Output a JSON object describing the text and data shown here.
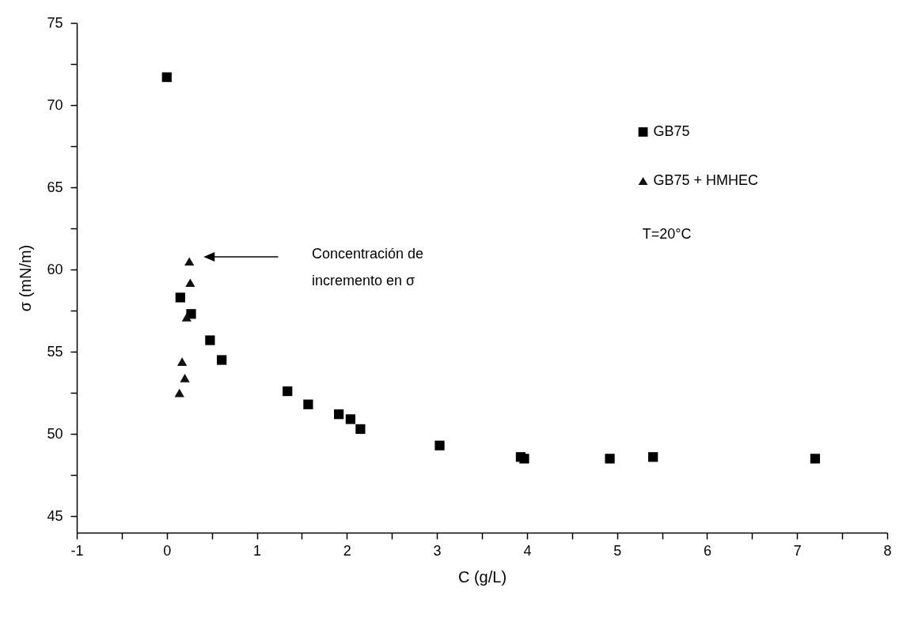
{
  "chart_data": {
    "type": "scatter",
    "xlabel": "C (g/L)",
    "ylabel": "σ (mN/m)",
    "xlim": [
      -1,
      8
    ],
    "ylim": [
      44,
      75
    ],
    "xticks": [
      -1,
      {
        "value": -0.5,
        "label": null
      },
      0,
      {
        "value": 0.5,
        "label": null
      },
      1,
      {
        "value": 1.5,
        "label": null
      },
      2,
      {
        "value": 2.5,
        "label": null
      },
      3,
      {
        "value": 3.5,
        "label": null
      },
      4,
      {
        "value": 4.5,
        "label": null
      },
      5,
      {
        "value": 5.5,
        "label": null
      },
      6,
      {
        "value": 6.5,
        "label": null
      },
      7,
      {
        "value": 7.5,
        "label": null
      },
      8
    ],
    "yticks": [
      45,
      {
        "value": 47.5,
        "label": null
      },
      50,
      {
        "value": 52.5,
        "label": null
      },
      55,
      {
        "value": 57.5,
        "label": null
      },
      60,
      {
        "value": 62.5,
        "label": null
      },
      65,
      {
        "value": 67.5,
        "label": null
      },
      70,
      {
        "value": 72.5,
        "label": null
      },
      75
    ],
    "grid": false,
    "legend": "top right",
    "series": [
      {
        "name": "GB75",
        "color": "#000000",
        "marker": "square",
        "x": [
          0.0,
          0.15,
          0.27,
          0.48,
          0.61,
          1.34,
          1.57,
          1.91,
          2.04,
          2.15,
          3.03,
          3.93,
          3.97,
          4.92,
          5.4,
          7.2
        ],
        "values": [
          71.7,
          58.3,
          57.3,
          55.7,
          54.5,
          52.6,
          51.8,
          51.2,
          50.9,
          50.3,
          49.3,
          48.6,
          48.5,
          48.5,
          48.6,
          48.5
        ]
      },
      {
        "name": "GB75 + HMHEC",
        "color": "#111111",
        "marker": "triangle",
        "x": [
          0.25,
          0.26,
          0.22,
          0.17,
          0.2,
          0.14
        ],
        "values": [
          60.5,
          59.2,
          57.1,
          54.4,
          53.4,
          52.5
        ]
      }
    ],
    "annotations": [
      "Concentración de\nincremento en σ",
      "T=20°C"
    ]
  }
}
